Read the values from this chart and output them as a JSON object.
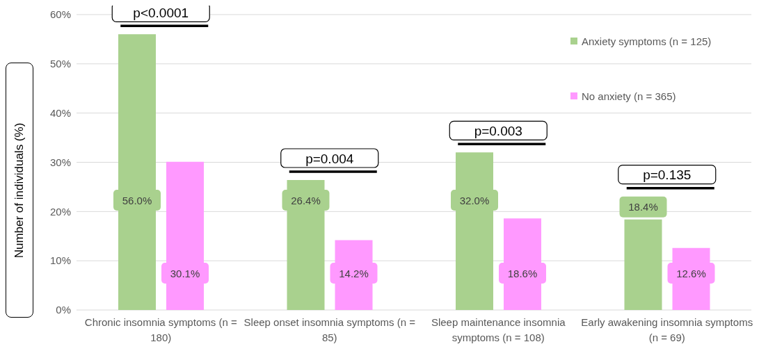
{
  "chart_data": {
    "type": "bar",
    "ylabel": "Number of individuals (%)",
    "categories": [
      "Chronic insomnia symptoms (n = 180)",
      "Sleep onset insomnia symptoms (n = 85)",
      "Sleep maintenance insomnia symptoms (n = 108)",
      "Early awakening insomnia symptoms (n = 69)"
    ],
    "series": [
      {
        "name": "Anxiety symptoms (n = 125)",
        "color": "#a9d18e",
        "values": [
          56.0,
          26.4,
          32.0,
          18.4
        ],
        "value_labels": [
          "56.0%",
          "26.4%",
          "32.0%",
          "18.4%"
        ]
      },
      {
        "name": "No anxiety (n = 365)",
        "color": "#ff99ff",
        "values": [
          30.1,
          14.2,
          18.6,
          12.6
        ],
        "value_labels": [
          "30.1%",
          "14.2%",
          "18.6%",
          "12.6%"
        ]
      }
    ],
    "ylim": [
      0,
      60
    ],
    "yticks": [
      {
        "value": 0,
        "label": "0%"
      },
      {
        "value": 10,
        "label": "10%"
      },
      {
        "value": 20,
        "label": "20%"
      },
      {
        "value": 30,
        "label": "30%"
      },
      {
        "value": 40,
        "label": "40%"
      },
      {
        "value": 50,
        "label": "50%"
      },
      {
        "value": 60,
        "label": "60%"
      }
    ],
    "grid": "y",
    "legend": "top right",
    "annotations": [
      "p<0.0001",
      "p=0.004",
      "p=0.003",
      "p=0.135"
    ]
  }
}
